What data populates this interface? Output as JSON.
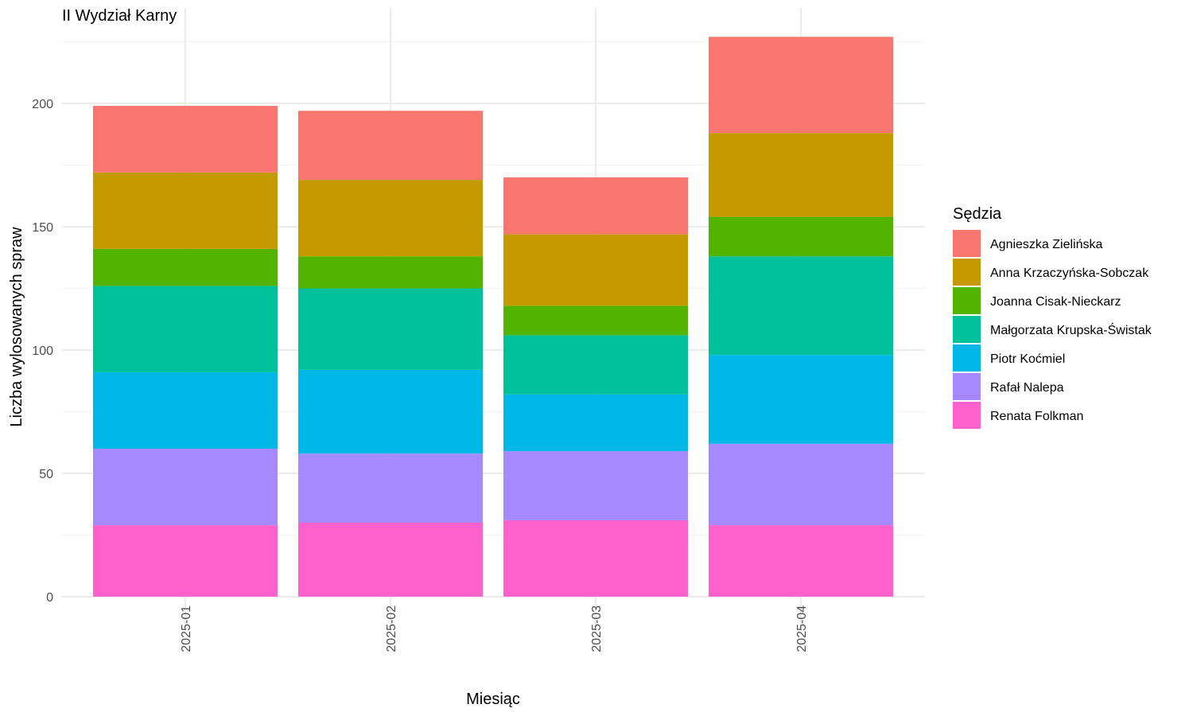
{
  "chart_data": {
    "type": "bar",
    "stacked": true,
    "title": "II Wydział Karny",
    "xlabel": "Miesiąc",
    "ylabel": "Liczba wylosowanych spraw",
    "ylim": [
      0,
      235
    ],
    "yticks": [
      0,
      50,
      100,
      150,
      200
    ],
    "grid": true,
    "legend": {
      "title": "Sędzia",
      "position": "right"
    },
    "categories": [
      "2025-01",
      "2025-02",
      "2025-03",
      "2025-04"
    ],
    "series": [
      {
        "name": "Renata Folkman",
        "color": "#FF61CC",
        "values": [
          29,
          30,
          31,
          29
        ]
      },
      {
        "name": "Rafał Nalepa",
        "color": "#A58AFF",
        "values": [
          31,
          28,
          28,
          33
        ]
      },
      {
        "name": "Piotr Koćmiel",
        "color": "#00B8E7",
        "values": [
          31,
          34,
          23,
          36
        ]
      },
      {
        "name": "Małgorzata Krupska-Świstak",
        "color": "#00C19A",
        "values": [
          35,
          33,
          24,
          40
        ]
      },
      {
        "name": "Joanna Cisak-Nieckarz",
        "color": "#53B400",
        "values": [
          15,
          13,
          12,
          16
        ]
      },
      {
        "name": "Anna Krzaczyńska-Sobczak",
        "color": "#C49A00",
        "values": [
          31,
          31,
          29,
          34
        ]
      },
      {
        "name": "Agnieszka Zielińska",
        "color": "#F8766D",
        "values": [
          27,
          28,
          23,
          39
        ]
      }
    ]
  }
}
